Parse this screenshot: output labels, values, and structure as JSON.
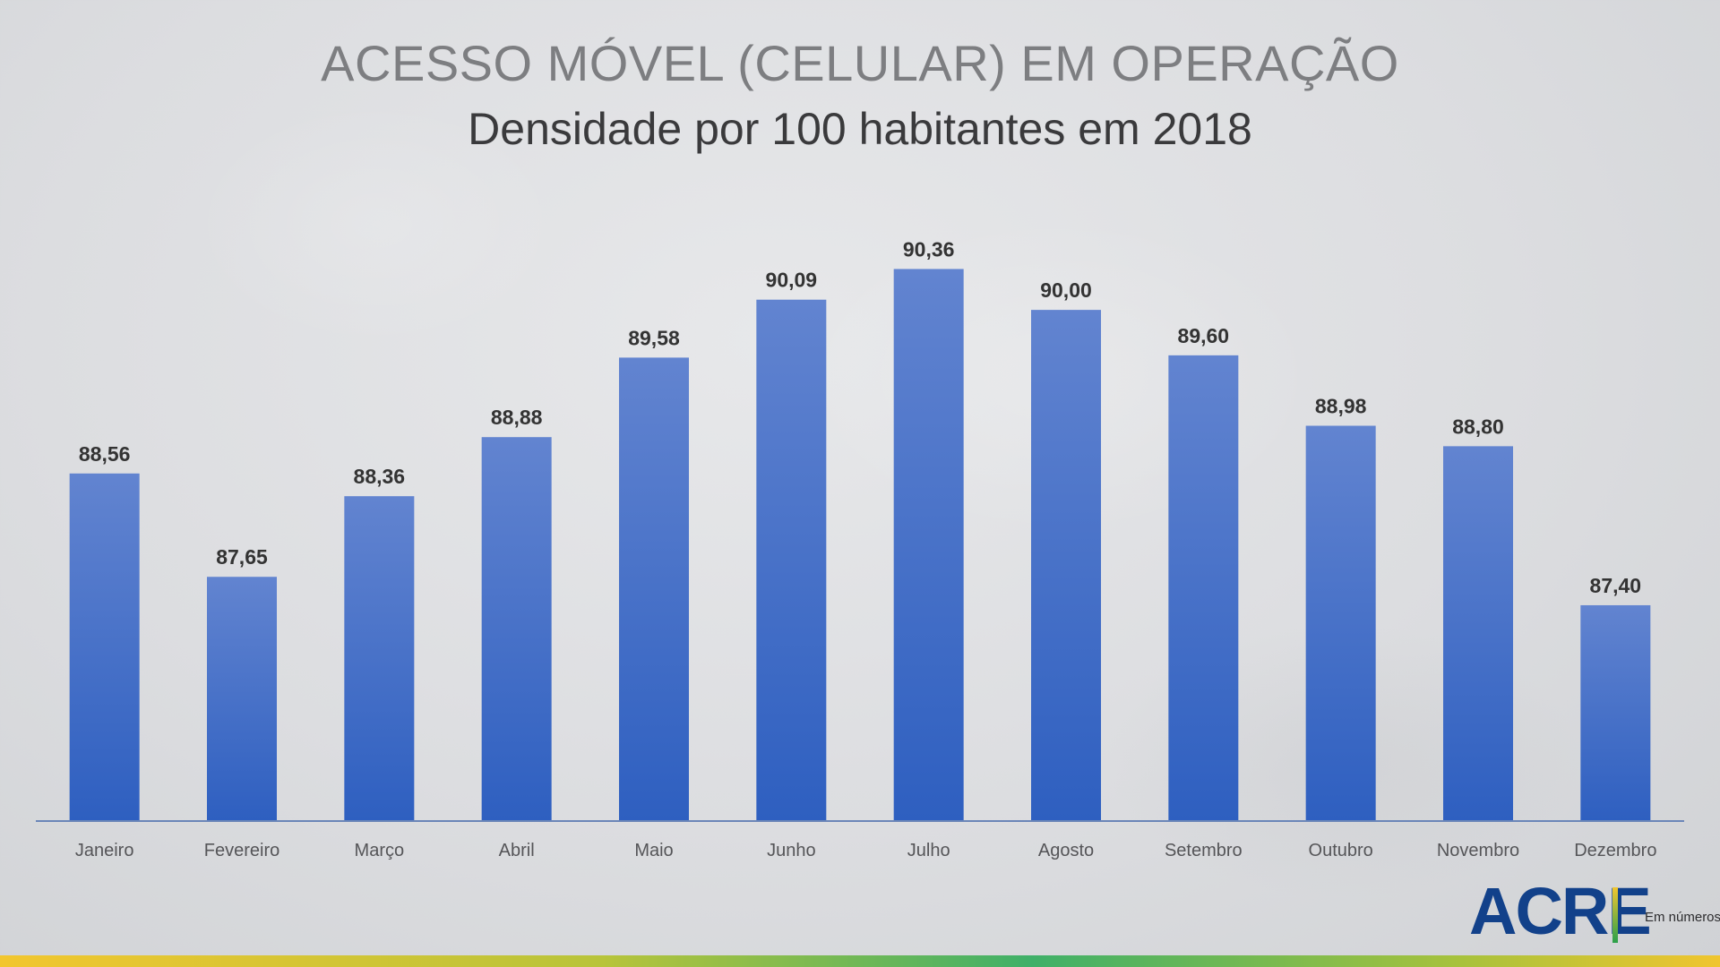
{
  "header": {
    "title": "ACESSO MÓVEL (CELULAR) EM OPERAÇÃO",
    "subtitle": "Densidade por 100 habitantes em 2018"
  },
  "logo": {
    "main": "ACRE",
    "sub": "Em números"
  },
  "colors": {
    "bar_top": "#6284d0",
    "bar_bottom": "#2e5fc0",
    "axis": "#6b86b8",
    "label": "#333333",
    "tick": "#555558"
  },
  "chart_data": {
    "type": "bar",
    "title": "ACESSO MÓVEL (CELULAR) EM OPERAÇÃO",
    "subtitle": "Densidade por 100 habitantes em 2018",
    "categories": [
      "Janeiro",
      "Fevereiro",
      "Março",
      "Abril",
      "Maio",
      "Junho",
      "Julho",
      "Agosto",
      "Setembro",
      "Outubro",
      "Novembro",
      "Dezembro"
    ],
    "values": [
      88.56,
      87.65,
      88.36,
      88.88,
      89.58,
      90.09,
      90.36,
      90.0,
      89.6,
      88.98,
      88.8,
      87.4
    ],
    "data_labels": [
      "88,56",
      "87,65",
      "88,36",
      "88,88",
      "89,58",
      "90,09",
      "90,36",
      "90,00",
      "89,60",
      "88,98",
      "88,80",
      "87,40"
    ],
    "xlabel": "",
    "ylabel": "",
    "ylim": [
      85.5,
      90.6
    ],
    "grid": false,
    "legend": "none"
  }
}
